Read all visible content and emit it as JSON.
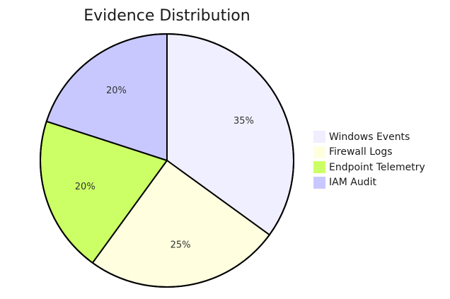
{
  "chart_data": {
    "type": "pie",
    "title": "Evidence Distribution",
    "slices": [
      {
        "label": "Windows Events",
        "value": 35,
        "display": "35%",
        "color": "#f0efff"
      },
      {
        "label": "Firewall Logs",
        "value": 25,
        "display": "25%",
        "color": "#ffffe0"
      },
      {
        "label": "Endpoint Telemetry",
        "value": 20,
        "display": "20%",
        "color": "#ccff66"
      },
      {
        "label": "IAM Audit",
        "value": 20,
        "display": "20%",
        "color": "#c8c8ff"
      }
    ],
    "legend_position": "right",
    "slice_stroke_color": "#000000"
  }
}
